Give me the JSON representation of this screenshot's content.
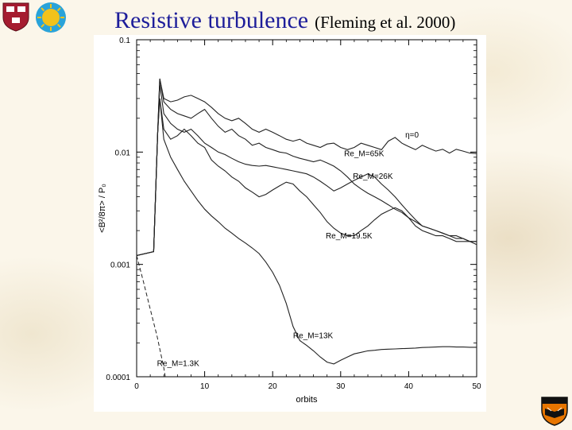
{
  "slide": {
    "title": "Resistive turbulence",
    "subtitle": "(Fleming et al. 2000)"
  },
  "logos": {
    "left": [
      "harvard-shield-icon",
      "sun-logo-icon"
    ],
    "right": [
      "princeton-shield-icon"
    ]
  },
  "colors": {
    "title": "#1d1d9a",
    "harvard_crimson": "#a51c30",
    "sun_yellow": "#f2c21b",
    "sun_blue": "#2aa3d9",
    "princeton_orange": "#e77500"
  },
  "chart_data": {
    "type": "line",
    "xlabel": "orbits",
    "ylabel": "<B²/8π> / P₀",
    "xlim": [
      0,
      50
    ],
    "ylim": [
      0.0001,
      0.1
    ],
    "yscale": "log",
    "xticks": [
      0,
      10,
      20,
      30,
      40,
      50
    ],
    "xtick_labels": [
      "0",
      "10",
      "20",
      "30",
      "40",
      "50"
    ],
    "yticks": [
      0.0001,
      0.001,
      0.01,
      0.1
    ],
    "ytick_labels": [
      "0.0001",
      "0.001",
      "0.01",
      "0.1"
    ],
    "grid": false,
    "legend": "none",
    "series": [
      {
        "name": "η=0",
        "label_at": [
          39.5,
          0.0135
        ],
        "x": [
          0,
          2.5,
          3.1,
          3.4,
          4,
          5,
          6,
          7,
          8,
          9,
          10,
          11,
          12,
          13,
          14,
          15,
          16,
          17,
          18,
          19,
          20,
          21,
          22,
          23,
          24,
          25,
          26,
          27,
          28,
          29,
          30,
          31,
          32,
          33,
          34,
          35,
          36,
          37,
          38,
          39,
          40,
          41,
          42,
          43,
          44,
          45,
          46,
          47,
          48,
          49,
          50
        ],
        "y": [
          0.0012,
          0.0013,
          0.015,
          0.045,
          0.03,
          0.028,
          0.029,
          0.031,
          0.032,
          0.03,
          0.028,
          0.025,
          0.022,
          0.02,
          0.019,
          0.02,
          0.018,
          0.016,
          0.015,
          0.016,
          0.015,
          0.014,
          0.013,
          0.0125,
          0.013,
          0.012,
          0.0115,
          0.011,
          0.0118,
          0.012,
          0.011,
          0.0105,
          0.011,
          0.012,
          0.0115,
          0.011,
          0.0105,
          0.0125,
          0.0135,
          0.012,
          0.0112,
          0.0105,
          0.0115,
          0.0108,
          0.0102,
          0.0106,
          0.0098,
          0.0106,
          0.0102,
          0.0098,
          0.0097
        ]
      },
      {
        "name": "Re_M=65K",
        "label_at": [
          30.5,
          0.0092
        ],
        "x": [
          0,
          2.5,
          3.1,
          3.4,
          4,
          5,
          6,
          7,
          8,
          9,
          10,
          11,
          12,
          13,
          14,
          15,
          16,
          17,
          18,
          19,
          20,
          21,
          22,
          23,
          24,
          25,
          26,
          27,
          28,
          29,
          30,
          31,
          32,
          33,
          34,
          35,
          36,
          37,
          38,
          39,
          40,
          41,
          42,
          43,
          44,
          45,
          46,
          47,
          48,
          49,
          50
        ],
        "y": [
          0.0012,
          0.0013,
          0.015,
          0.045,
          0.028,
          0.024,
          0.022,
          0.021,
          0.02,
          0.022,
          0.024,
          0.02,
          0.017,
          0.015,
          0.016,
          0.014,
          0.013,
          0.0115,
          0.012,
          0.011,
          0.0105,
          0.01,
          0.0098,
          0.0092,
          0.0088,
          0.0085,
          0.0082,
          0.0085,
          0.008,
          0.0075,
          0.0068,
          0.006,
          0.0052,
          0.0047,
          0.0043,
          0.004,
          0.0037,
          0.0034,
          0.0031,
          0.0029,
          0.0026,
          0.0024,
          0.0022,
          0.0021,
          0.002,
          0.0019,
          0.0018,
          0.0018,
          0.0017,
          0.0016,
          0.0016
        ]
      },
      {
        "name": "Re_M=26K",
        "label_at": [
          31.8,
          0.0058
        ],
        "x": [
          0,
          2.5,
          3.1,
          3.4,
          4,
          5,
          6,
          7,
          8,
          9,
          10,
          11,
          12,
          13,
          14,
          15,
          16,
          17,
          18,
          19,
          20,
          21,
          22,
          23,
          24,
          25,
          26,
          27,
          28,
          29,
          30,
          31,
          32,
          33,
          34,
          35,
          36,
          37,
          38,
          39,
          40,
          41,
          42,
          43,
          44,
          45,
          46,
          47,
          48,
          49,
          50
        ],
        "y": [
          0.0012,
          0.0013,
          0.015,
          0.04,
          0.022,
          0.018,
          0.016,
          0.015,
          0.016,
          0.014,
          0.012,
          0.011,
          0.01,
          0.0095,
          0.0088,
          0.0082,
          0.0078,
          0.0076,
          0.0075,
          0.0076,
          0.0074,
          0.0072,
          0.007,
          0.0068,
          0.0066,
          0.0064,
          0.006,
          0.0055,
          0.005,
          0.0045,
          0.0048,
          0.0052,
          0.0056,
          0.006,
          0.0064,
          0.006,
          0.0052,
          0.0046,
          0.004,
          0.0034,
          0.0029,
          0.0025,
          0.0022,
          0.0021,
          0.002,
          0.0019,
          0.0018,
          0.0017,
          0.0017,
          0.0016,
          0.0016
        ]
      },
      {
        "name": "Re_M=19.5K",
        "label_at": [
          27.8,
          0.0017
        ],
        "x": [
          0,
          2.5,
          3.1,
          3.4,
          4,
          5,
          6,
          7,
          8,
          9,
          10,
          11,
          12,
          13,
          14,
          15,
          16,
          17,
          18,
          19,
          20,
          21,
          22,
          23,
          24,
          25,
          26,
          27,
          28,
          29,
          30,
          31,
          32,
          33,
          34,
          35,
          36,
          37,
          38,
          39,
          40,
          41,
          42,
          43,
          44,
          45,
          46,
          47,
          48,
          49,
          50
        ],
        "y": [
          0.0012,
          0.0013,
          0.015,
          0.03,
          0.016,
          0.013,
          0.014,
          0.016,
          0.014,
          0.012,
          0.011,
          0.0085,
          0.0075,
          0.0068,
          0.006,
          0.0055,
          0.0048,
          0.0044,
          0.004,
          0.0042,
          0.0046,
          0.005,
          0.0054,
          0.0052,
          0.0045,
          0.004,
          0.0034,
          0.0029,
          0.0024,
          0.0021,
          0.0019,
          0.0018,
          0.0018,
          0.002,
          0.0022,
          0.0025,
          0.0028,
          0.003,
          0.0032,
          0.003,
          0.0026,
          0.0022,
          0.002,
          0.0019,
          0.0018,
          0.0018,
          0.0017,
          0.0016,
          0.0016,
          0.0016,
          0.0015
        ]
      },
      {
        "name": "Re_M=13K",
        "label_at": [
          23.0,
          0.00022
        ],
        "x": [
          0,
          2.5,
          3.1,
          3.4,
          4,
          5,
          6,
          7,
          8,
          9,
          10,
          11,
          12,
          13,
          14,
          15,
          16,
          17,
          18,
          19,
          20,
          21,
          22,
          23,
          24,
          25,
          26,
          27,
          28,
          29,
          30,
          31,
          32,
          33,
          34,
          35,
          36,
          37,
          38,
          39,
          40,
          41,
          42,
          43,
          44,
          45,
          46,
          47,
          48,
          49,
          50
        ],
        "y": [
          0.0012,
          0.0013,
          0.015,
          0.03,
          0.013,
          0.009,
          0.007,
          0.0055,
          0.0045,
          0.0037,
          0.0031,
          0.0027,
          0.0024,
          0.0021,
          0.0019,
          0.0017,
          0.00155,
          0.0014,
          0.00125,
          0.00105,
          0.00085,
          0.00065,
          0.00045,
          0.00028,
          0.00021,
          0.00019,
          0.00017,
          0.00015,
          0.000135,
          0.00013,
          0.00014,
          0.00015,
          0.00016,
          0.000165,
          0.00017,
          0.000172,
          0.000175,
          0.000176,
          0.000177,
          0.000178,
          0.000179,
          0.00018,
          0.000182,
          0.000183,
          0.000184,
          0.000185,
          0.000185,
          0.000184,
          0.000184,
          0.000183,
          0.000183
        ]
      },
      {
        "name": "Re_M=1.3K",
        "label_at": [
          3.0,
          0.000125
        ],
        "x": [
          0,
          1,
          2,
          3,
          4,
          4.2
        ],
        "y": [
          0.0012,
          0.0007,
          0.0004,
          0.00023,
          0.00012,
          0.0001
        ]
      }
    ],
    "annotations": [
      {
        "text": "η=0",
        "x": 39.5,
        "y": 0.0135
      },
      {
        "text": "Re_M=65K",
        "x": 30.5,
        "y": 0.0092
      },
      {
        "text": "Re_M=26K",
        "x": 31.8,
        "y": 0.0058
      },
      {
        "text": "Re_M=19.5K",
        "x": 27.8,
        "y": 0.0017
      },
      {
        "text": "Re_M=13K",
        "x": 23.0,
        "y": 0.00022
      },
      {
        "text": "Re_M=1.3K",
        "x": 3.0,
        "y": 0.000125
      }
    ]
  }
}
